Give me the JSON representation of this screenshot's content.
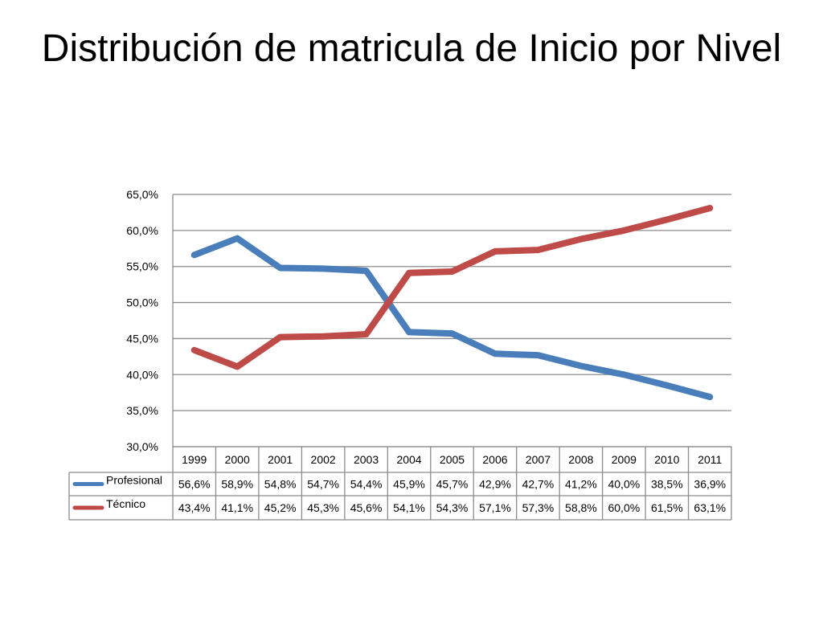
{
  "slide": {
    "title": "Distribución de matricula de Inicio por Nivel"
  },
  "chart_data": {
    "type": "line",
    "title": "",
    "xlabel": "",
    "ylabel": "",
    "categories": [
      "1999",
      "2000",
      "2001",
      "2002",
      "2003",
      "2004",
      "2005",
      "2006",
      "2007",
      "2008",
      "2009",
      "2010",
      "2011"
    ],
    "series": [
      {
        "name": "Profesional",
        "color": "#4a7ebb",
        "values": [
          56.6,
          58.9,
          54.8,
          54.7,
          54.4,
          45.9,
          45.7,
          42.9,
          42.7,
          41.2,
          40.0,
          38.5,
          36.9
        ],
        "labels": [
          "56,6%",
          "58,9%",
          "54,8%",
          "54,7%",
          "54,4%",
          "45,9%",
          "45,7%",
          "42,9%",
          "42,7%",
          "41,2%",
          "40,0%",
          "38,5%",
          "36,9%"
        ]
      },
      {
        "name": "Técnico",
        "color": "#be4b48",
        "values": [
          43.4,
          41.1,
          45.2,
          45.3,
          45.6,
          54.1,
          54.3,
          57.1,
          57.3,
          58.8,
          60.0,
          61.5,
          63.1
        ],
        "labels": [
          "43,4%",
          "41,1%",
          "45,2%",
          "45,3%",
          "45,6%",
          "54,1%",
          "54,3%",
          "57,1%",
          "57,3%",
          "58,8%",
          "60,0%",
          "61,5%",
          "63,1%"
        ]
      }
    ],
    "ylim": [
      30,
      65
    ],
    "yticks": [
      30,
      35,
      40,
      45,
      50,
      55,
      60,
      65
    ],
    "ytick_labels": [
      "30,0%",
      "35,0%",
      "40,0%",
      "45,0%",
      "50,0%",
      "55,0%",
      "60,0%",
      "65,0%"
    ],
    "grid": true,
    "legend": "data-table",
    "data_table": true
  }
}
